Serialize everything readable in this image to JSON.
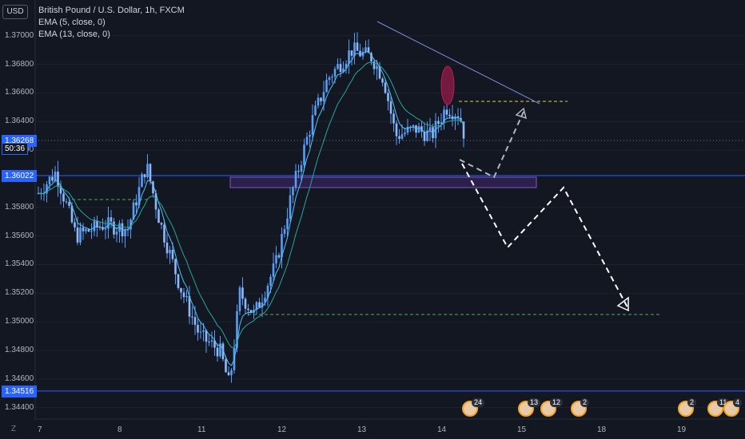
{
  "chart_data": {
    "type": "candlestick",
    "title": "British Pound / U.S. Dollar, 1h, FXCM",
    "currency": "USD",
    "indicators": [
      "EMA (5, close, 0)",
      "EMA (13, close, 0)"
    ],
    "x_ticks": [
      "7",
      "8",
      "11",
      "12",
      "13",
      "14",
      "15",
      "18",
      "19"
    ],
    "y_ticks": [
      "1.37000",
      "1.36800",
      "1.36600",
      "1.36400",
      "1.36200",
      "1.35800",
      "1.35600",
      "1.35400",
      "1.35200",
      "1.35000",
      "1.34800",
      "1.34600",
      "1.34400"
    ],
    "ylim": [
      1.3432,
      1.3725
    ],
    "price_tags": [
      {
        "label": "1.36268",
        "value": 1.36268,
        "color": "#2962ff"
      },
      {
        "label": "50:36",
        "value": 1.3621,
        "color": "#2962ff"
      },
      {
        "label": "1.36022",
        "value": 1.36022,
        "color": "#2962ff"
      },
      {
        "label": "1.34516",
        "value": 1.34516,
        "color": "#2962ff"
      }
    ],
    "horizontal_lines": [
      {
        "value": 1.36022,
        "style": "solid",
        "color": "#2962ff"
      },
      {
        "value": 1.34516,
        "style": "solid",
        "color": "#2962ff"
      },
      {
        "value": 1.36268,
        "style": "dotted",
        "color": "#787b86"
      }
    ],
    "ema_colors": {
      "fast": "#4fc3f7",
      "slow": "#26a69a"
    },
    "candle_color": "#5b9cf6",
    "event_markers": [
      {
        "label": "24"
      },
      {
        "label": "13"
      },
      {
        "label": "12"
      },
      {
        "label": "2"
      },
      {
        "label": "2"
      },
      {
        "label": "11"
      },
      {
        "label": "4"
      }
    ]
  }
}
